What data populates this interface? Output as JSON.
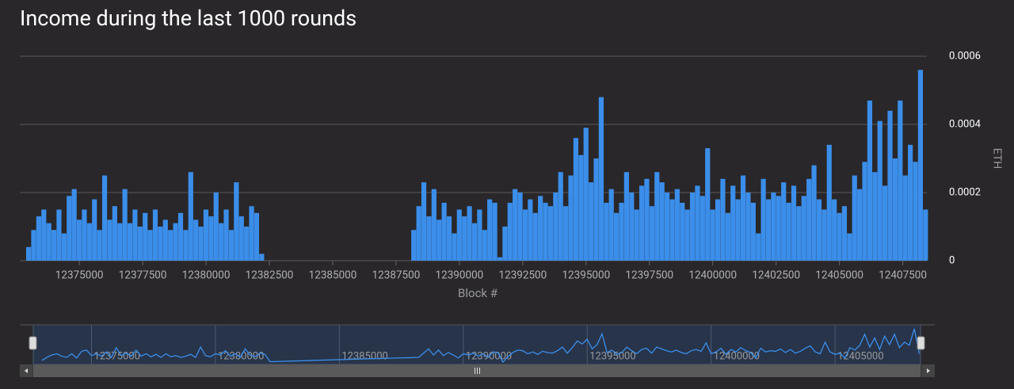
{
  "chart_data": {
    "type": "bar",
    "title": "Income during the last 1000 rounds",
    "x_label": "Block #",
    "y_label": "ETH",
    "color": "#3b8eea",
    "grid": true,
    "y_axis_side": "right",
    "xlim": [
      12372650,
      12408450
    ],
    "ylim": [
      0,
      0.0006
    ],
    "xticks": [
      12375000,
      12377500,
      12380000,
      12382500,
      12385000,
      12387500,
      12390000,
      12392500,
      12395000,
      12397500,
      12400000,
      12402500,
      12405000,
      12407500
    ],
    "yticks": [
      0,
      0.0002,
      0.0004,
      0.0006
    ],
    "navigator_xticks": [
      12375000,
      12380000,
      12385000,
      12390000,
      12395000,
      12400000,
      12405000
    ],
    "x": [
      12373000,
      12373200,
      12373400,
      12373600,
      12373800,
      12374000,
      12374200,
      12374400,
      12374600,
      12374800,
      12375000,
      12375200,
      12375400,
      12375600,
      12375800,
      12376000,
      12376200,
      12376400,
      12376600,
      12376800,
      12377000,
      12377200,
      12377400,
      12377600,
      12377800,
      12378000,
      12378200,
      12378400,
      12378600,
      12378800,
      12379000,
      12379200,
      12379400,
      12379600,
      12379800,
      12380000,
      12380200,
      12380400,
      12380600,
      12380800,
      12381000,
      12381200,
      12381400,
      12381600,
      12381800,
      12382000,
      12382200,
      12388200,
      12388400,
      12388600,
      12388800,
      12389000,
      12389200,
      12389400,
      12389600,
      12389800,
      12390000,
      12390200,
      12390400,
      12390600,
      12390800,
      12391000,
      12391200,
      12391400,
      12391600,
      12391800,
      12392000,
      12392200,
      12392400,
      12392600,
      12392800,
      12393000,
      12393200,
      12393400,
      12393600,
      12393800,
      12394000,
      12394200,
      12394400,
      12394600,
      12394800,
      12395000,
      12395200,
      12395400,
      12395600,
      12395800,
      12396000,
      12396200,
      12396400,
      12396600,
      12396800,
      12397000,
      12397200,
      12397400,
      12397600,
      12397800,
      12398000,
      12398200,
      12398400,
      12398600,
      12398800,
      12399000,
      12399200,
      12399400,
      12399600,
      12399800,
      12400000,
      12400200,
      12400400,
      12400600,
      12400800,
      12401000,
      12401200,
      12401400,
      12401600,
      12401800,
      12402000,
      12402200,
      12402400,
      12402600,
      12402800,
      12403000,
      12403200,
      12403400,
      12403600,
      12403800,
      12404000,
      12404200,
      12404400,
      12404600,
      12404800,
      12405000,
      12405200,
      12405400,
      12405600,
      12405800,
      12406000,
      12406200,
      12406400,
      12406600,
      12406800,
      12407000,
      12407200,
      12407400,
      12407600,
      12407800,
      12408000,
      12408200,
      12408400
    ],
    "values": [
      4e-05,
      9e-05,
      0.00013,
      0.00015,
      0.00011,
      9e-05,
      0.00015,
      8e-05,
      0.00019,
      0.00021,
      0.00012,
      0.00015,
      0.00011,
      0.00018,
      9e-05,
      0.00025,
      0.00012,
      0.00016,
      0.00011,
      0.00021,
      0.00011,
      0.00015,
      0.0001,
      0.00014,
      9e-05,
      0.00015,
      0.0001,
      0.00012,
      9e-05,
      0.00011,
      0.00014,
      9e-05,
      0.00026,
      0.00012,
      0.0001,
      0.00015,
      0.00013,
      0.0002,
      0.00011,
      0.00015,
      9e-05,
      0.00023,
      0.00013,
      0.0001,
      0.00016,
      0.00014,
      2e-05,
      9e-05,
      0.00016,
      0.00023,
      0.00013,
      0.00021,
      0.00012,
      0.00017,
      0.00013,
      8e-05,
      0.00015,
      0.00013,
      0.00016,
      0.00011,
      0.00015,
      9e-05,
      0.00018,
      0.00017,
      1e-05,
      0.0001,
      0.00017,
      0.00021,
      0.0002,
      0.00015,
      0.00018,
      0.00014,
      0.00019,
      0.00017,
      0.00016,
      0.0002,
      0.00026,
      0.00016,
      0.00025,
      0.00036,
      0.00031,
      0.00039,
      0.00023,
      0.0003,
      0.00048,
      0.00017,
      0.00021,
      0.00014,
      0.00017,
      0.00026,
      0.0002,
      0.00015,
      0.00022,
      0.00024,
      0.00016,
      0.00026,
      0.00023,
      0.0002,
      0.00018,
      0.00021,
      0.00017,
      0.00015,
      0.0002,
      0.00022,
      0.00019,
      0.00033,
      0.00015,
      0.00018,
      0.00024,
      0.00014,
      0.00022,
      0.00018,
      0.00025,
      0.0002,
      0.00017,
      8e-05,
      0.00024,
      0.00018,
      0.0002,
      0.00019,
      0.00023,
      0.00017,
      0.00022,
      0.00016,
      0.00019,
      0.00024,
      0.00028,
      0.00018,
      0.00015,
      0.00034,
      0.00018,
      0.00014,
      0.00016,
      8e-05,
      0.00025,
      0.00021,
      0.00029,
      0.00047,
      0.00026,
      0.00041,
      0.00022,
      0.00044,
      0.0003,
      0.00047,
      0.00025,
      0.00034,
      0.00029,
      0.00056,
      0.00015
    ]
  }
}
